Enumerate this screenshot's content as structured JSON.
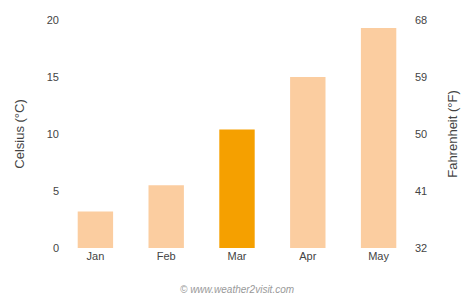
{
  "chart_data": {
    "type": "bar",
    "categories": [
      "Jan",
      "Feb",
      "Mar",
      "Apr",
      "May"
    ],
    "values": [
      3.2,
      5.5,
      10.4,
      15.0,
      19.3
    ],
    "colors": [
      "#FBCDA0",
      "#FBCDA0",
      "#F5A000",
      "#FBCDA0",
      "#FBCDA0"
    ],
    "ylabel": "Celsius (°C)",
    "y2label": "Fahrenheit (°F)",
    "ylim": [
      0,
      20
    ],
    "yticks": [
      0,
      5,
      10,
      15,
      20
    ],
    "y2lim": [
      32,
      68
    ],
    "y2ticks": [
      32,
      41,
      50,
      59,
      68
    ],
    "grid": false,
    "annotations": [
      "© www.weather2visit.com"
    ]
  }
}
